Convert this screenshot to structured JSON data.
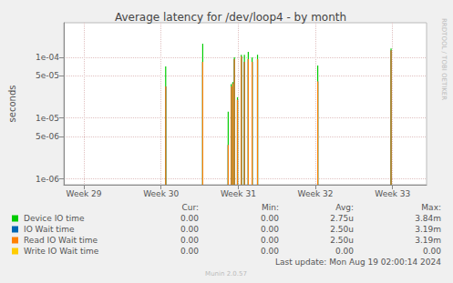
{
  "chart_data": {
    "type": "line",
    "title": "Average latency for /dev/loop4 - by month",
    "y_label": "seconds",
    "log": "y",
    "grid": true,
    "x": [
      30.06,
      30.54,
      30.87,
      30.91,
      30.93,
      30.95,
      30.99,
      31.04,
      31.08,
      31.13,
      31.18,
      31.25,
      32.03,
      32.98
    ],
    "xlim": [
      28.74,
      33.44
    ],
    "xticks": [
      {
        "value": 29,
        "label": "Week 29"
      },
      {
        "value": 30,
        "label": "Week 30"
      },
      {
        "value": 31,
        "label": "Week 31"
      },
      {
        "value": 32,
        "label": "Week 32"
      },
      {
        "value": 33,
        "label": "Week 33"
      }
    ],
    "ylim": [
      8e-07,
      0.00037
    ],
    "yticks": [
      {
        "value": 1e-06,
        "label": "1e-06"
      },
      {
        "value": 5e-06,
        "label": "5e-06"
      },
      {
        "value": 1e-05,
        "label": "1e-05"
      },
      {
        "value": 5e-05,
        "label": "5e-05"
      },
      {
        "value": 0.0001,
        "label": "1e-04"
      }
    ],
    "stats_columns": [
      "Cur:",
      "Min:",
      "Avg:",
      "Max:"
    ],
    "series": [
      {
        "name": "Device IO time",
        "color": "#00cc00",
        "values": [
          7.1e-05,
          0.000167,
          1.27e-05,
          3.6e-05,
          3.9e-05,
          0.0001,
          2.2e-05,
          0.00011,
          0.00011,
          0.000123,
          0.0001,
          0.00011,
          7.3e-05,
          0.00014
        ],
        "stats": [
          "0.00",
          "0.00",
          "2.75u",
          "3.84m"
        ]
      },
      {
        "name": "IO Wait time",
        "color": "#0066b3",
        "values": [
          3.3e-05,
          8.4e-05,
          3.6e-06,
          3.3e-05,
          3.7e-05,
          9.3e-05,
          2e-05,
          0.000103,
          8.4e-05,
          9.3e-05,
          8.4e-05,
          9.3e-05,
          4e-05,
          0.00013
        ],
        "stats": [
          "0.00",
          "0.00",
          "2.50u",
          "3.19m"
        ]
      },
      {
        "name": "Read IO Wait time",
        "color": "#ff8000",
        "values": [
          3.3e-05,
          8.4e-05,
          3.6e-06,
          3.3e-05,
          3.7e-05,
          9.3e-05,
          2e-05,
          0.000103,
          8.4e-05,
          9.3e-05,
          8.4e-05,
          9.3e-05,
          4e-05,
          0.00013
        ],
        "stats": [
          "0.00",
          "0.00",
          "2.50u",
          "3.19m"
        ]
      },
      {
        "name": "Write IO Wait time",
        "color": "#ffcc00",
        "values": [
          null,
          null,
          null,
          null,
          null,
          null,
          null,
          null,
          null,
          null,
          null,
          null,
          null,
          null
        ],
        "stats": [
          "0.00",
          "0.00",
          "0.00",
          "0.00"
        ]
      }
    ],
    "footer": "Last update: Mon Aug 19 02:00:14 2024",
    "version": "Munin 2.0.57",
    "side_text": "RRDTOOL / TOBI OETIKER"
  }
}
